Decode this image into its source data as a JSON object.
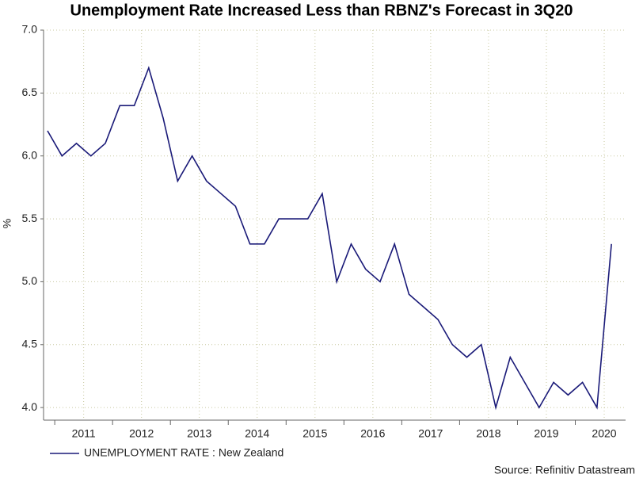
{
  "chart_data": {
    "type": "line",
    "title": "Unemployment Rate Increased Less than RBNZ's Forecast in 3Q20",
    "y_label": "%",
    "source": "Source: Refinitiv Datastream",
    "categories": [
      null,
      null,
      "2011",
      null,
      null,
      null,
      "2012",
      null,
      null,
      null,
      "2013",
      null,
      null,
      null,
      "2014",
      null,
      null,
      null,
      "2015",
      null,
      null,
      null,
      "2016",
      null,
      null,
      null,
      "2017",
      null,
      null,
      null,
      "2018",
      null,
      null,
      null,
      "2019",
      null,
      null,
      null,
      "2020",
      null
    ],
    "series": [
      {
        "name": "UNEMPLOYMENT RATE : New Zealand",
        "color": "#1a1a78",
        "values": [
          6.2,
          6.0,
          6.1,
          6.0,
          6.1,
          6.4,
          6.4,
          6.7,
          6.3,
          5.8,
          6.0,
          5.8,
          5.7,
          5.6,
          5.3,
          5.3,
          5.5,
          5.5,
          5.5,
          5.7,
          5.0,
          5.3,
          5.1,
          5.0,
          5.3,
          4.9,
          4.8,
          4.7,
          4.5,
          4.4,
          4.5,
          4.0,
          4.4,
          4.2,
          4.0,
          4.2,
          4.1,
          4.2,
          4.0,
          5.3
        ]
      }
    ],
    "ylim": [
      3.9,
      7.0
    ],
    "yticks": [
      {
        "value": 4,
        "label": "4.0"
      },
      4.5,
      {
        "value": 5,
        "label": "5.0"
      },
      5.5,
      {
        "value": 6,
        "label": "6.0"
      },
      6.5,
      {
        "value": 7,
        "label": "7.0"
      }
    ],
    "grid": true
  }
}
